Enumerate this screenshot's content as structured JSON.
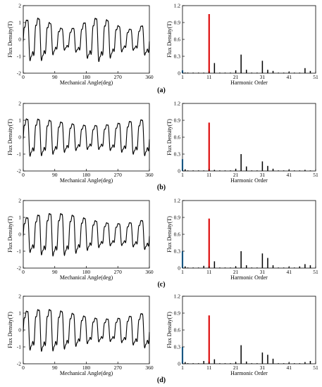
{
  "figure": {
    "panel_labels": [
      "(a)",
      "(b)",
      "(c)",
      "(d)"
    ]
  },
  "colors": {
    "waveform": "#000000",
    "harmonic_bar": "#000000",
    "fundamental_bar": "#2a8fd6",
    "highlight_bar": "#e02020",
    "axis": "#000000"
  },
  "chart_data": [
    {
      "panel": "(a)",
      "type": "line",
      "xlabel": "Mechanical Angle(deg)",
      "ylabel": "Flux Density(T)",
      "xlim": [
        0,
        360
      ],
      "ylim": [
        -2,
        2
      ],
      "xticks": [
        "0",
        "90",
        "180",
        "270",
        "360"
      ],
      "yticks": [
        "-2",
        "-1",
        "0",
        "1",
        "2"
      ],
      "series": [
        {
          "x": [
            0,
            360
          ],
          "waveform": {
            "cycles": 11,
            "base_amplitude": 1.0,
            "modulation_depth": 0.35,
            "modulation_cycles": 2,
            "modulation_phase_deg": 20
          }
        }
      ]
    },
    {
      "panel": "(a)",
      "type": "bar",
      "xlabel": "Harmonic Order",
      "ylabel": "Flux Density(T)",
      "xlim": [
        1,
        51
      ],
      "ylim": [
        0,
        1.2
      ],
      "xticks": [
        "1",
        "11",
        "21",
        "31",
        "41",
        "51"
      ],
      "yticks": [
        "0",
        "0.3",
        "0.6",
        "0.9",
        "1.2"
      ],
      "x": [
        1,
        2,
        3,
        5,
        7,
        9,
        11,
        13,
        15,
        17,
        19,
        21,
        23,
        25,
        27,
        29,
        31,
        33,
        35,
        37,
        39,
        41,
        43,
        45,
        47,
        49
      ],
      "values": [
        0.05,
        0.01,
        0.01,
        0.01,
        0.01,
        0.01,
        1.05,
        0.18,
        0.01,
        0.01,
        0.01,
        0.05,
        0.33,
        0.06,
        0.01,
        0.01,
        0.22,
        0.06,
        0.04,
        0.01,
        0.01,
        0.02,
        0.01,
        0.01,
        0.09,
        0.04
      ],
      "highlight": {
        "x": [
          11
        ],
        "fundamental": [
          1
        ]
      }
    },
    {
      "panel": "(b)",
      "type": "line",
      "xlabel": "Mechanical Angle(deg)",
      "ylabel": "Flux Density(T)",
      "xlim": [
        0,
        360
      ],
      "ylim": [
        -2,
        2
      ],
      "xticks": [
        "0",
        "90",
        "180",
        "270",
        "360"
      ],
      "yticks": [
        "-2",
        "-1",
        "0",
        "1",
        "2"
      ],
      "series": [
        {
          "x": [
            0,
            360
          ],
          "waveform": {
            "cycles": 11,
            "base_amplitude": 0.95,
            "modulation_depth": 0.22,
            "modulation_cycles": 1,
            "modulation_phase_deg": 70
          }
        }
      ]
    },
    {
      "panel": "(b)",
      "type": "bar",
      "xlabel": "Harmonic Order",
      "ylabel": "Flux Density(T)",
      "xlim": [
        1,
        51
      ],
      "ylim": [
        0,
        1.2
      ],
      "xticks": [
        "1",
        "11",
        "21",
        "31",
        "41",
        "51"
      ],
      "yticks": [
        "0",
        "0.3",
        "0.6",
        "0.9",
        "1.2"
      ],
      "x": [
        1,
        2,
        3,
        5,
        7,
        9,
        11,
        13,
        15,
        17,
        19,
        21,
        23,
        25,
        27,
        29,
        31,
        33,
        35,
        37,
        39,
        41,
        43,
        45,
        47,
        49
      ],
      "values": [
        0.21,
        0.03,
        0.01,
        0.01,
        0.01,
        0.01,
        0.86,
        0.02,
        0.01,
        0.01,
        0.01,
        0.04,
        0.3,
        0.08,
        0.01,
        0.01,
        0.17,
        0.09,
        0.04,
        0.01,
        0.01,
        0.02,
        0.01,
        0.01,
        0.02,
        0.01
      ],
      "highlight": {
        "x": [
          11
        ],
        "fundamental": [
          1
        ]
      }
    },
    {
      "panel": "(c)",
      "type": "line",
      "xlabel": "Mechanical Angle(deg)",
      "ylabel": "Flux Density(T)",
      "xlim": [
        0,
        360
      ],
      "ylim": [
        -2,
        2
      ],
      "xticks": [
        "0",
        "90",
        "180",
        "270",
        "360"
      ],
      "yticks": [
        "-2",
        "-1",
        "0",
        "1",
        "2"
      ],
      "series": [
        {
          "x": [
            0,
            360
          ],
          "waveform": {
            "cycles": 11,
            "base_amplitude": 1.0,
            "modulation_depth": 0.32,
            "modulation_cycles": 1,
            "modulation_phase_deg": 0
          }
        }
      ]
    },
    {
      "panel": "(c)",
      "type": "bar",
      "xlabel": "Harmonic Order",
      "ylabel": "Flux Density(T)",
      "xlim": [
        1,
        51
      ],
      "ylim": [
        0,
        1.2
      ],
      "xticks": [
        "1",
        "11",
        "21",
        "31",
        "41",
        "51"
      ],
      "yticks": [
        "0",
        "0.3",
        "0.6",
        "0.9",
        "1.2"
      ],
      "x": [
        1,
        2,
        3,
        5,
        7,
        9,
        11,
        13,
        15,
        17,
        19,
        21,
        23,
        25,
        27,
        29,
        31,
        33,
        35,
        37,
        39,
        41,
        43,
        45,
        47,
        49
      ],
      "values": [
        0.3,
        0.03,
        0.01,
        0.01,
        0.01,
        0.04,
        0.88,
        0.12,
        0.01,
        0.01,
        0.01,
        0.03,
        0.3,
        0.05,
        0.01,
        0.01,
        0.26,
        0.18,
        0.05,
        0.01,
        0.01,
        0.02,
        0.01,
        0.03,
        0.07,
        0.05
      ],
      "highlight": {
        "x": [
          11
        ],
        "fundamental": [
          1
        ]
      }
    },
    {
      "panel": "(d)",
      "type": "line",
      "xlabel": "Mechanical Angle(deg)",
      "ylabel": "Flux Density(T)",
      "xlim": [
        0,
        360
      ],
      "ylim": [
        -2,
        2
      ],
      "xticks": [
        "0",
        "90",
        "180",
        "270",
        "360"
      ],
      "yticks": [
        "-2",
        "-1",
        "0",
        "1",
        "2"
      ],
      "series": [
        {
          "x": [
            0,
            360
          ],
          "waveform": {
            "cycles": 11,
            "base_amplitude": 1.0,
            "modulation_depth": 0.3,
            "modulation_cycles": 1,
            "modulation_phase_deg": 30
          }
        }
      ]
    },
    {
      "panel": "(d)",
      "type": "bar",
      "xlabel": "Harmonic Order",
      "ylabel": "Flux Density(T)",
      "xlim": [
        1,
        51
      ],
      "ylim": [
        0,
        1.2
      ],
      "xticks": [
        "1",
        "11",
        "21",
        "31",
        "41",
        "51"
      ],
      "yticks": [
        "0",
        "0.3",
        "0.6",
        "0.9",
        "1.2"
      ],
      "x": [
        1,
        2,
        3,
        5,
        7,
        9,
        11,
        13,
        15,
        17,
        19,
        21,
        23,
        25,
        27,
        29,
        31,
        33,
        35,
        37,
        39,
        41,
        43,
        45,
        47,
        49
      ],
      "values": [
        0.3,
        0.03,
        0.01,
        0.01,
        0.01,
        0.05,
        0.86,
        0.08,
        0.01,
        0.01,
        0.01,
        0.03,
        0.33,
        0.04,
        0.01,
        0.01,
        0.2,
        0.16,
        0.09,
        0.01,
        0.01,
        0.02,
        0.01,
        0.01,
        0.03,
        0.05
      ],
      "highlight": {
        "x": [
          11
        ],
        "fundamental": [
          1
        ]
      }
    }
  ]
}
